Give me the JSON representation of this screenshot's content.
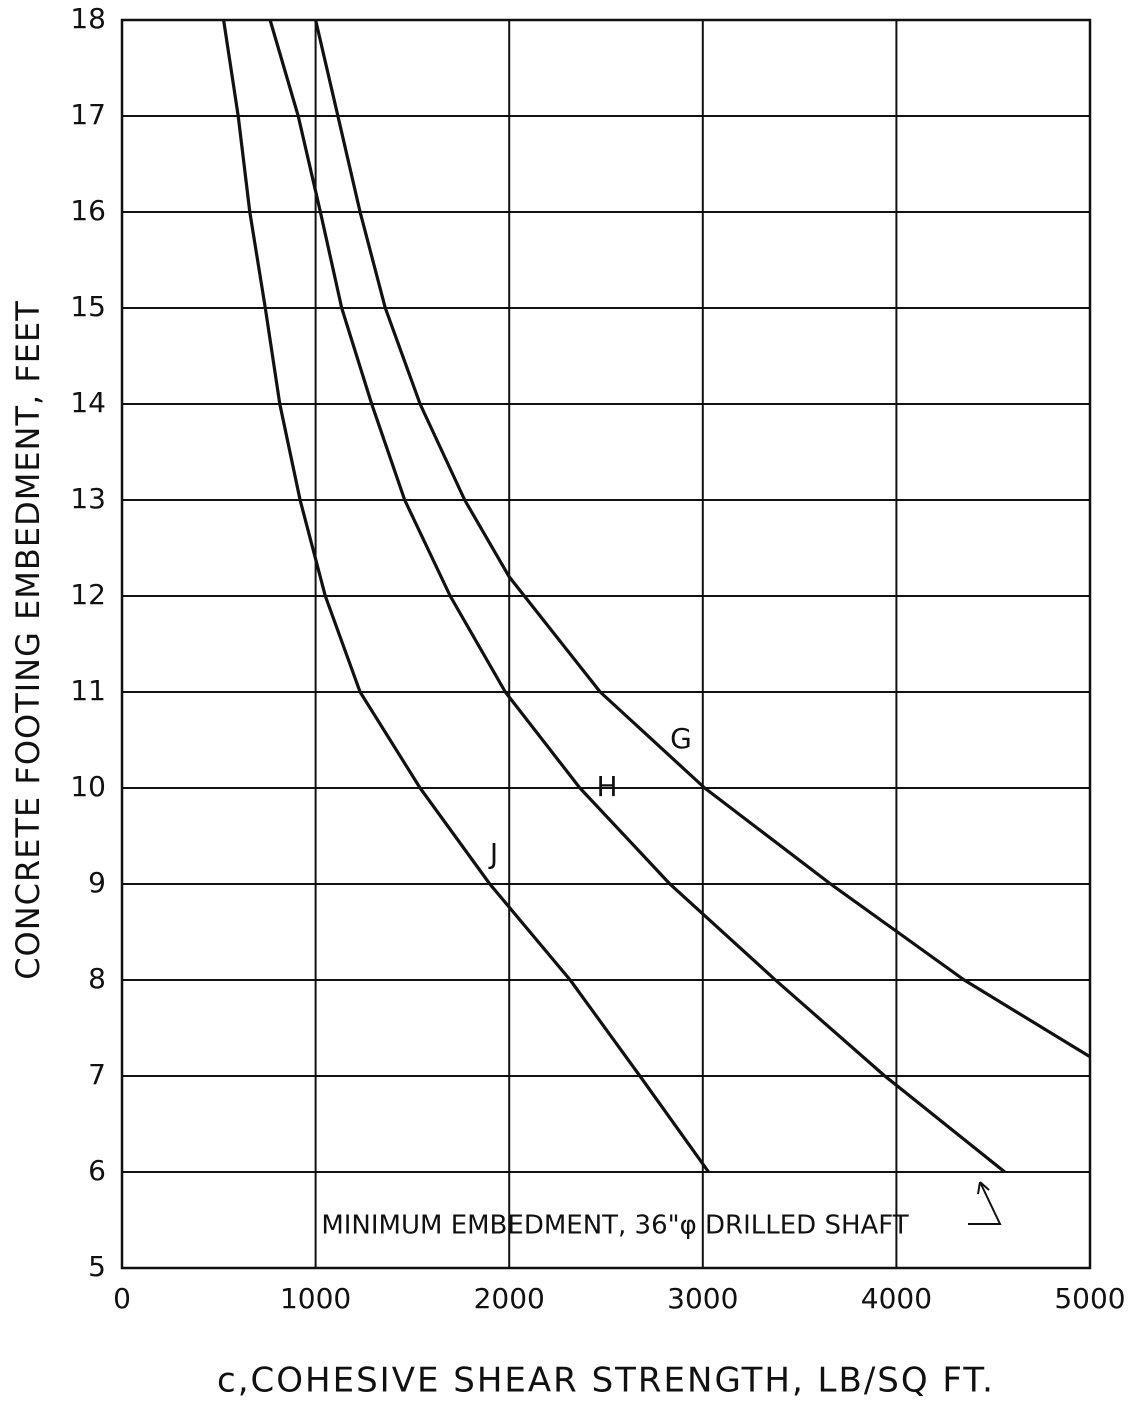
{
  "chart_data": {
    "type": "line",
    "x_label": "c,COHESIVE SHEAR STRENGTH, LB/SQ FT.",
    "y_label": "CONCRETE FOOTING EMBEDMENT, FEET",
    "annotation": "MINIMUM EMBEDMENT, 36\"φ DRILLED SHAFT",
    "xlim": [
      0,
      5000
    ],
    "ylim": [
      5,
      18
    ],
    "xticks": [
      0,
      1000,
      2000,
      3000,
      4000,
      5000
    ],
    "yticks": [
      5,
      6,
      7,
      8,
      9,
      10,
      11,
      12,
      13,
      14,
      15,
      16,
      17,
      18
    ],
    "grid": true,
    "series": [
      {
        "name": "G",
        "color": "#111111",
        "x": [
          1000,
          1115,
          1230,
          1360,
          1540,
          1770,
          2000,
          2470,
          3010,
          3660,
          4350,
          5000
        ],
        "values": [
          18,
          17,
          16,
          15,
          14,
          13,
          12.2,
          11,
          10,
          9,
          8,
          7.2
        ]
      },
      {
        "name": "H",
        "color": "#111111",
        "x": [
          765,
          910,
          1025,
          1135,
          1290,
          1460,
          1695,
          1980,
          2365,
          2830,
          3375,
          3940,
          4560
        ],
        "values": [
          18,
          17,
          16,
          15,
          14,
          13,
          12,
          11,
          10,
          9,
          8,
          7,
          6
        ]
      },
      {
        "name": "J",
        "color": "#111111",
        "x": [
          525,
          600,
          660,
          740,
          815,
          920,
          1050,
          1230,
          1540,
          1900,
          2315,
          2675,
          3030
        ],
        "values": [
          18,
          17,
          16,
          15,
          14,
          13,
          12,
          11,
          10,
          9,
          8,
          7,
          6
        ]
      }
    ]
  }
}
